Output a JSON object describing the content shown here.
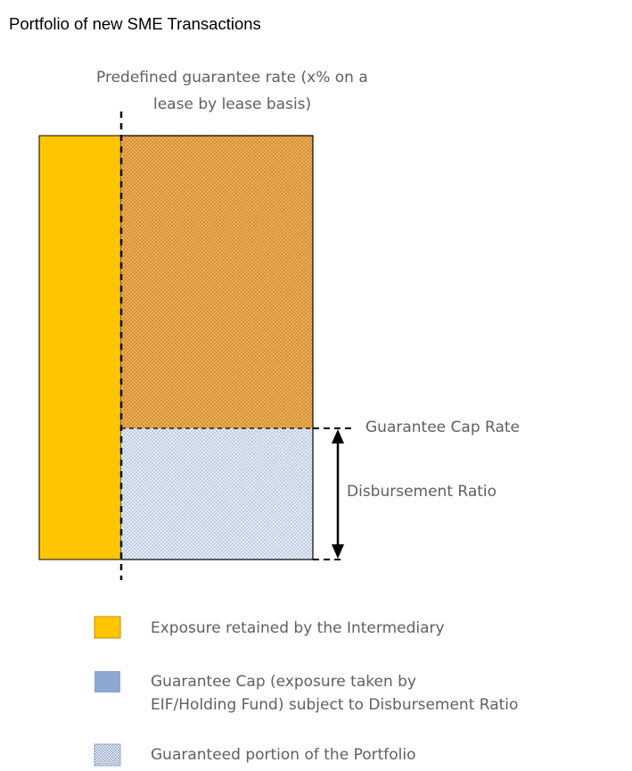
{
  "title": "Portfolio of new SME Transactions",
  "annotations": {
    "guarantee_rate_line1": "Predefined guarantee rate (x% on a",
    "guarantee_rate_line2": "lease by lease basis)",
    "cap_rate": "Guarantee Cap Rate",
    "disbursement_ratio": "Disbursement Ratio"
  },
  "legend": [
    {
      "line1": "Exposure retained by the Intermediary",
      "line2": "",
      "swatch": "solid-orange"
    },
    {
      "line1": "Guarantee Cap (exposure taken by",
      "line2": "EIF/Holding Fund) subject to Disbursement Ratio",
      "swatch": "solid-blue"
    },
    {
      "line1": "Guaranteed portion of the Portfolio",
      "line2": "",
      "swatch": "dotted-blue"
    }
  ],
  "colors": {
    "retained": "#FFC600",
    "guaranteed_upper": "#F5A94E",
    "cap_blue": "#8AA8D2",
    "cap_light": "#C9D8EC"
  }
}
